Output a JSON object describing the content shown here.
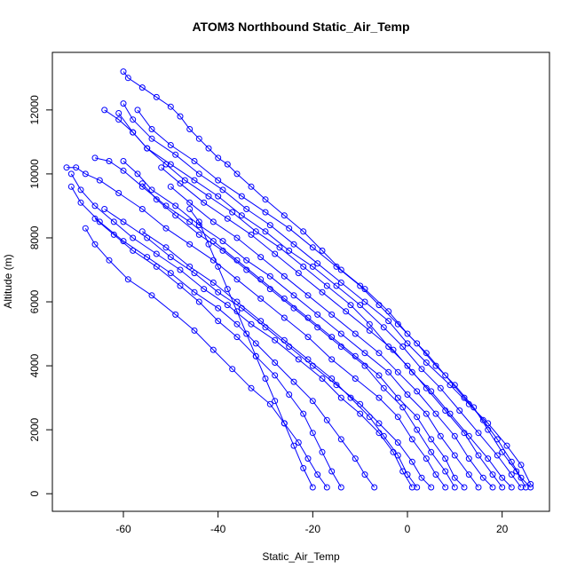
{
  "chart_data": {
    "type": "line",
    "title": "ATOM3 Northbound Static_Air_Temp",
    "xlabel": "Static_Air_Temp",
    "ylabel": "Altitude (m)",
    "xlim": [
      -75,
      30
    ],
    "ylim": [
      -550,
      13800
    ],
    "x_ticks": [
      -60,
      -40,
      -20,
      0,
      20
    ],
    "y_ticks": [
      0,
      2000,
      4000,
      6000,
      8000,
      10000,
      12000
    ],
    "marker": "open-circle",
    "line_color": "#0000ff",
    "grid": false,
    "legend": "none",
    "series": [
      {
        "x": [
          26,
          24,
          22,
          19,
          16,
          12,
          8,
          4,
          0,
          -4,
          -9,
          -14,
          -18,
          -22,
          -26,
          -30,
          -33,
          -36,
          -38,
          -40,
          -42,
          -44,
          -46,
          -48,
          -50,
          -53,
          -56,
          -59,
          -60
        ],
        "y": [
          200,
          500,
          1000,
          1700,
          2300,
          3000,
          3700,
          4400,
          5000,
          5700,
          6400,
          7000,
          7600,
          8200,
          8700,
          9200,
          9600,
          10000,
          10300,
          10500,
          10800,
          11100,
          11400,
          11800,
          12100,
          12400,
          12700,
          13000,
          13200
        ]
      },
      {
        "x": [
          25,
          23,
          20,
          17,
          14,
          10,
          6,
          2,
          -2,
          -6,
          -10,
          -15,
          -20,
          -25,
          -30,
          -35,
          -40,
          -45,
          -50,
          -54,
          -57
        ],
        "y": [
          200,
          700,
          1300,
          2000,
          2700,
          3400,
          4000,
          4700,
          5300,
          5900,
          6500,
          7100,
          7700,
          8300,
          8800,
          9300,
          9800,
          10400,
          10900,
          11400,
          12000
        ]
      },
      {
        "x": [
          24,
          22,
          19,
          15,
          11,
          7,
          3,
          -1,
          -5,
          -10,
          -15,
          -20,
          -25,
          -30,
          -35,
          -40,
          -45,
          -50,
          -55,
          -58,
          -61
        ],
        "y": [
          200,
          600,
          1200,
          1900,
          2600,
          3300,
          3900,
          4600,
          5200,
          5900,
          6500,
          7100,
          7600,
          8200,
          8700,
          9300,
          9800,
          10300,
          10800,
          11300,
          11900
        ]
      },
      {
        "x": [
          22,
          20,
          17,
          13,
          9,
          5,
          1,
          -3,
          -8,
          -13,
          -18,
          -23,
          -28,
          -33,
          -38,
          -43,
          -48,
          -52
        ],
        "y": [
          200,
          500,
          1100,
          1800,
          2500,
          3200,
          3800,
          4500,
          5100,
          5700,
          6300,
          6900,
          7500,
          8100,
          8600,
          9100,
          9700,
          10200
        ]
      },
      {
        "x": [
          20,
          18,
          15,
          12,
          8,
          4,
          0,
          -4,
          -8,
          -12,
          -17,
          -22,
          -27,
          -32,
          -37,
          -42,
          -47,
          -51,
          -55,
          -58,
          -61,
          -64
        ],
        "y": [
          200,
          600,
          1200,
          1900,
          2600,
          3300,
          4000,
          4600,
          5300,
          5900,
          6500,
          7100,
          7700,
          8200,
          8800,
          9300,
          9800,
          10300,
          10800,
          11300,
          11700,
          12000
        ]
      },
      {
        "x": [
          18,
          16,
          13,
          10,
          6,
          2,
          -2,
          -6,
          -11,
          -16,
          -21,
          -26,
          -31,
          -36,
          -41,
          -46,
          -50
        ],
        "y": [
          200,
          500,
          1100,
          1800,
          2500,
          3200,
          3800,
          4400,
          5000,
          5600,
          6200,
          6800,
          7400,
          8000,
          8500,
          9100,
          9600
        ]
      },
      {
        "x": [
          15,
          13,
          10,
          7,
          4,
          0,
          -4,
          -9,
          -14,
          -19,
          -24,
          -29,
          -34,
          -39,
          -44,
          -49,
          -54,
          -57,
          -60
        ],
        "y": [
          200,
          600,
          1200,
          1800,
          2500,
          3100,
          3800,
          4400,
          5000,
          5600,
          6200,
          6800,
          7300,
          7900,
          8400,
          9000,
          9500,
          10000,
          10400
        ]
      },
      {
        "x": [
          12,
          10,
          8,
          5,
          2,
          -2,
          -6,
          -11,
          -16,
          -21,
          -26,
          -31,
          -36,
          -41,
          -46,
          -51,
          -56,
          -60,
          -63,
          -66
        ],
        "y": [
          200,
          500,
          1100,
          1700,
          2400,
          3000,
          3700,
          4300,
          4900,
          5500,
          6100,
          6700,
          7300,
          7900,
          8500,
          9000,
          9600,
          10100,
          10400,
          10500
        ]
      },
      {
        "x": [
          8,
          6,
          4,
          1,
          -2,
          -6,
          -11,
          -16,
          -21,
          -26,
          -31,
          -36,
          -41,
          -46,
          -51,
          -56,
          -61,
          -65,
          -68,
          -70,
          -72
        ],
        "y": [
          200,
          600,
          1100,
          1700,
          2400,
          3000,
          3600,
          4200,
          4900,
          5500,
          6100,
          6700,
          7300,
          7800,
          8300,
          8900,
          9400,
          9800,
          10000,
          10200,
          10200
        ]
      },
      {
        "x": [
          5,
          3,
          1,
          -2,
          -6,
          -10,
          -15,
          -20,
          -25,
          -30,
          -35,
          -40,
          -45,
          -50,
          -55,
          -60,
          -64
        ],
        "y": [
          200,
          500,
          1000,
          1600,
          2200,
          2800,
          3400,
          4000,
          4600,
          5200,
          5800,
          6300,
          6900,
          7400,
          8000,
          8500,
          8900
        ]
      },
      {
        "x": [
          1,
          -1,
          -3,
          -6,
          -10,
          -14,
          -18,
          -23,
          -28,
          -33,
          -38,
          -43,
          -48,
          -53,
          -58,
          -62,
          -66,
          -69,
          -71
        ],
        "y": [
          200,
          700,
          1300,
          1900,
          2500,
          3000,
          3600,
          4200,
          4800,
          5300,
          5900,
          6400,
          7000,
          7500,
          8000,
          8500,
          9000,
          9500,
          10000
        ]
      },
      {
        "x": [
          -7,
          -9,
          -11,
          -14,
          -17,
          -20,
          -24,
          -28,
          -32,
          -36,
          -40,
          -45,
          -50,
          -55,
          -60,
          -65,
          -69,
          -71
        ],
        "y": [
          200,
          600,
          1100,
          1700,
          2300,
          2900,
          3500,
          4100,
          4700,
          5300,
          5800,
          6300,
          6900,
          7400,
          7900,
          8500,
          9100,
          9600
        ]
      },
      {
        "x": [
          -14,
          -16,
          -18,
          -20,
          -22,
          -25,
          -28,
          -32,
          -36,
          -40,
          -44,
          -48,
          -53,
          -58,
          -62,
          -66
        ],
        "y": [
          200,
          700,
          1300,
          1900,
          2500,
          3100,
          3700,
          4300,
          4900,
          5400,
          6000,
          6500,
          7100,
          7600,
          8100,
          8600
        ]
      },
      {
        "x": [
          -17,
          -19,
          -21,
          -23,
          -26,
          -29,
          -33,
          -37,
          -41,
          -45,
          -49,
          -54,
          -59,
          -63,
          -66,
          -68
        ],
        "y": [
          200,
          600,
          1100,
          1600,
          2200,
          2800,
          3300,
          3900,
          4500,
          5100,
          5600,
          6200,
          6700,
          7300,
          7800,
          8300
        ]
      },
      {
        "x": [
          -20,
          -22,
          -24,
          -26,
          -28,
          -30,
          -32,
          -34,
          -36,
          -38,
          -40,
          -42,
          -44,
          -46
        ],
        "y": [
          200,
          800,
          1500,
          2200,
          2900,
          3600,
          4300,
          5000,
          5700,
          6400,
          7100,
          7800,
          8500,
          8900
        ]
      },
      {
        "x": [
          26,
          24,
          21,
          17,
          13,
          9,
          4,
          0,
          -4,
          -9,
          -14,
          -19,
          -24,
          -29,
          -34,
          -39,
          -44,
          -49,
          -54,
          -58,
          -60
        ],
        "y": [
          300,
          900,
          1500,
          2200,
          2800,
          3400,
          4100,
          4700,
          5400,
          6000,
          6600,
          7200,
          7800,
          8400,
          8900,
          9500,
          10000,
          10600,
          11100,
          11700,
          12200
        ]
      },
      {
        "x": [
          10,
          8,
          5,
          2,
          -1,
          -5,
          -9,
          -14,
          -19,
          -24,
          -29,
          -34,
          -39,
          -44,
          -49,
          -53,
          -56
        ],
        "y": [
          200,
          700,
          1300,
          2000,
          2700,
          3300,
          4000,
          4600,
          5200,
          5800,
          6400,
          7000,
          7600,
          8100,
          8700,
          9200,
          9700
        ]
      },
      {
        "x": [
          2,
          0,
          -2,
          -5,
          -8,
          -12,
          -16,
          -21,
          -26,
          -31,
          -36,
          -41,
          -46,
          -51,
          -56
        ],
        "y": [
          200,
          600,
          1200,
          1800,
          2400,
          3000,
          3600,
          4200,
          4800,
          5400,
          6000,
          6600,
          7100,
          7700,
          8200
        ]
      }
    ]
  }
}
